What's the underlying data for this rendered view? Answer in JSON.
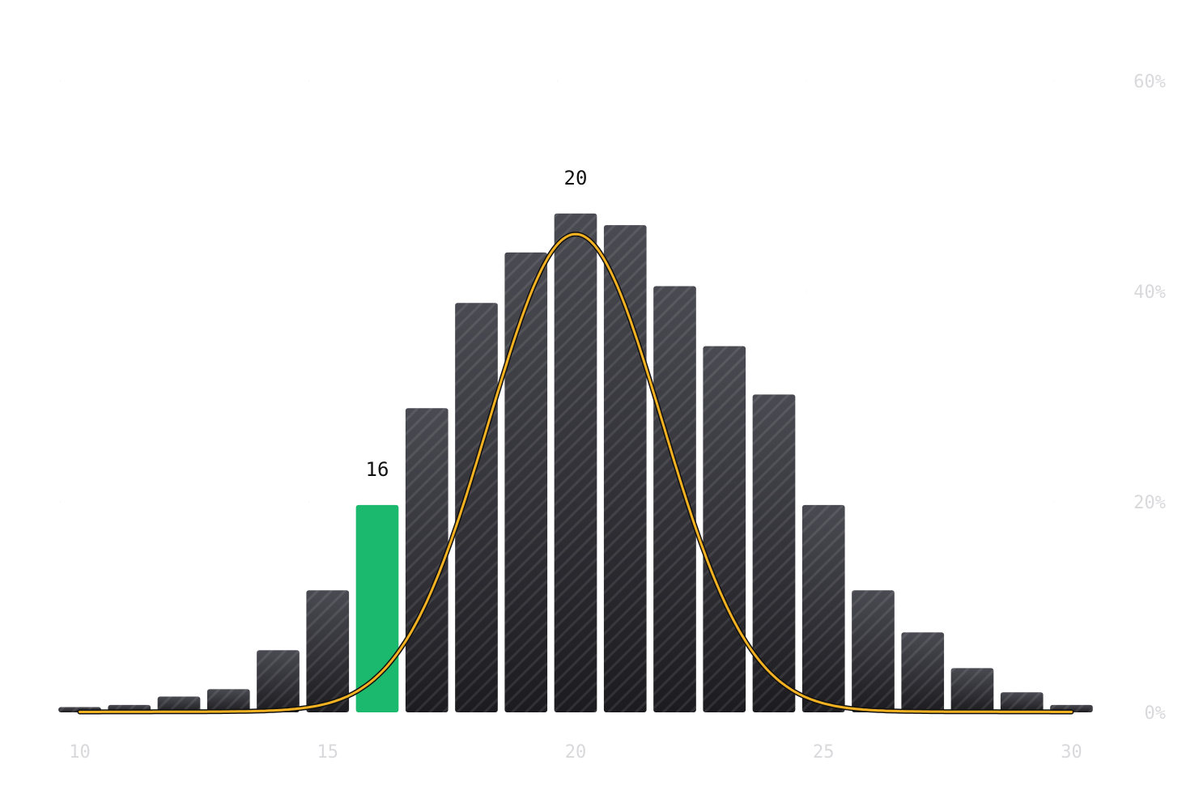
{
  "chart_data": {
    "type": "bar",
    "categories": [
      10,
      11,
      12,
      13,
      14,
      15,
      16,
      17,
      18,
      19,
      20,
      21,
      22,
      23,
      24,
      25,
      26,
      27,
      28,
      29,
      30
    ],
    "values": [
      0.5,
      0.7,
      1.5,
      2.2,
      5.9,
      11.6,
      19.7,
      28.9,
      38.9,
      43.7,
      47.4,
      46.3,
      40.5,
      34.8,
      30.2,
      19.7,
      11.6,
      7.6,
      4.2,
      1.9,
      0.7
    ],
    "highlight_category": 16,
    "highlight_color": "#1bb96e",
    "bar_color": "#2f2f33",
    "data_labels": [
      {
        "category": 16,
        "text": "16"
      },
      {
        "category": 20,
        "text": "20"
      }
    ],
    "curve": {
      "type": "normal-fit",
      "mean": 20,
      "peak": 45.3,
      "sd": 1.75,
      "color": "#f4b223",
      "outline_color": "#111111"
    },
    "xticks": [
      10,
      15,
      20,
      25,
      30
    ],
    "yticks": [
      {
        "value": 0,
        "label": "0%"
      },
      {
        "value": 20,
        "label": "20%"
      },
      {
        "value": 40,
        "label": "40%"
      },
      {
        "value": 60,
        "label": "60%"
      }
    ],
    "xlim": [
      9.6,
      30.4
    ],
    "ylim": [
      0,
      60
    ],
    "y_axis_side": "right",
    "grid": "dotted",
    "title": "",
    "xlabel": "",
    "ylabel": ""
  }
}
